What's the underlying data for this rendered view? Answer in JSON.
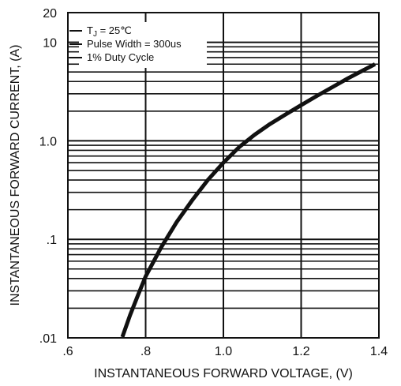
{
  "chart_data": {
    "type": "line",
    "xlabel": "INSTANTANEOUS FORWARD VOLTAGE, (V)",
    "ylabel": "INSTANTANEOUS FORWARD CURRENT, (A)",
    "x_scale": "linear",
    "y_scale": "log",
    "xlim": [
      0.6,
      1.4
    ],
    "ylim": [
      0.01,
      20
    ],
    "x_ticks": [
      {
        "value": 0.6,
        "label": ".6"
      },
      {
        "value": 0.8,
        "label": ".8"
      },
      {
        "value": 1.0,
        "label": "1.0"
      },
      {
        "value": 1.2,
        "label": "1.2"
      },
      {
        "value": 1.4,
        "label": "1.4"
      }
    ],
    "y_ticks": [
      {
        "value": 0.01,
        "label": ".01"
      },
      {
        "value": 0.1,
        "label": ".1"
      },
      {
        "value": 1.0,
        "label": "1.0"
      },
      {
        "value": 10,
        "label": "10"
      },
      {
        "value": 20,
        "label": "20"
      }
    ],
    "grid": true,
    "legend_lines": [
      {
        "prefix": "T",
        "sub": "J",
        "suffix": " = 25℃"
      },
      {
        "prefix": "Pulse Width = 300us",
        "sub": "",
        "suffix": ""
      },
      {
        "prefix": "1% Duty Cycle",
        "sub": "",
        "suffix": ""
      }
    ],
    "legend_position": "top-left",
    "series": [
      {
        "color": "#111111",
        "x": [
          0.74,
          0.76,
          0.78,
          0.8,
          0.84,
          0.88,
          0.92,
          0.96,
          1.0,
          1.04,
          1.08,
          1.12,
          1.16,
          1.2,
          1.24,
          1.28,
          1.32,
          1.36,
          1.39
        ],
        "y": [
          0.0102,
          0.017,
          0.027,
          0.042,
          0.083,
          0.15,
          0.25,
          0.4,
          0.6,
          0.86,
          1.15,
          1.48,
          1.85,
          2.3,
          2.85,
          3.5,
          4.3,
          5.2,
          6.0
        ]
      }
    ]
  }
}
